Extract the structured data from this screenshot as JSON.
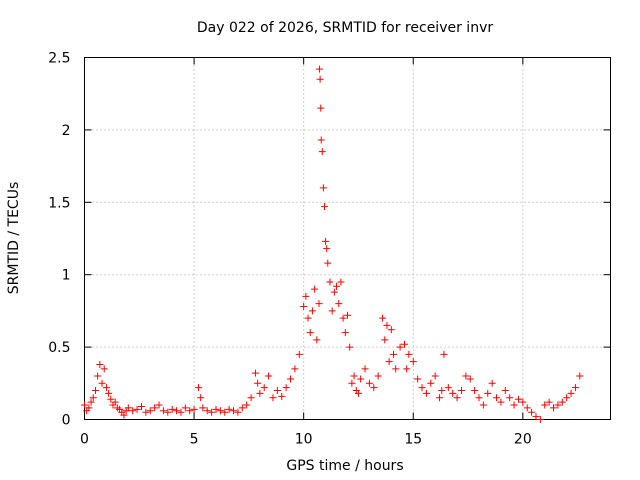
{
  "chart_data": {
    "type": "scatter",
    "title": "Day 022 of 2026, SRMTID for receiver invr",
    "xlabel": "GPS time / hours",
    "ylabel": "SRMTID / TECUs",
    "xlim": [
      0,
      24
    ],
    "ylim": [
      0,
      2.5
    ],
    "xticks": [
      0,
      5,
      10,
      15,
      20
    ],
    "xtick_labels": [
      "0",
      "5",
      "10",
      "15",
      "20"
    ],
    "yticks": [
      0,
      0.5,
      1,
      1.5,
      2,
      2.5
    ],
    "ytick_labels": [
      "0",
      "0.5",
      "1",
      "1.5",
      "2",
      "2.5"
    ],
    "grid": true,
    "marker": "+",
    "color": "#ff0000",
    "series": [
      {
        "name": "SRMTID",
        "x": [
          0.0,
          0.1,
          0.2,
          0.3,
          0.4,
          0.5,
          0.6,
          0.7,
          0.8,
          0.9,
          1.0,
          1.1,
          1.2,
          1.3,
          1.4,
          1.5,
          1.6,
          1.7,
          1.8,
          1.9,
          2.0,
          2.2,
          2.4,
          2.6,
          2.8,
          3.0,
          3.2,
          3.4,
          3.6,
          3.8,
          4.0,
          4.2,
          4.4,
          4.6,
          4.8,
          5.0,
          5.2,
          5.3,
          5.4,
          5.6,
          5.8,
          6.0,
          6.2,
          6.4,
          6.6,
          6.8,
          7.0,
          7.2,
          7.4,
          7.6,
          7.8,
          7.9,
          8.0,
          8.2,
          8.4,
          8.6,
          8.8,
          9.0,
          9.2,
          9.4,
          9.6,
          9.8,
          10.0,
          10.1,
          10.2,
          10.3,
          10.4,
          10.5,
          10.6,
          10.7,
          10.72,
          10.75,
          10.78,
          10.8,
          10.85,
          10.9,
          10.95,
          11.0,
          11.05,
          11.1,
          11.2,
          11.3,
          11.4,
          11.5,
          11.6,
          11.7,
          11.8,
          11.9,
          12.0,
          12.1,
          12.2,
          12.3,
          12.4,
          12.5,
          12.6,
          12.8,
          13.0,
          13.2,
          13.4,
          13.6,
          13.7,
          13.8,
          13.9,
          14.0,
          14.1,
          14.2,
          14.4,
          14.6,
          14.7,
          14.8,
          15.0,
          15.2,
          15.4,
          15.6,
          15.8,
          16.0,
          16.2,
          16.3,
          16.4,
          16.6,
          16.8,
          17.0,
          17.2,
          17.4,
          17.6,
          17.8,
          18.0,
          18.2,
          18.4,
          18.6,
          18.8,
          19.0,
          19.2,
          19.4,
          19.6,
          19.8,
          20.0,
          20.2,
          20.4,
          20.6,
          20.8,
          21.0,
          21.2,
          21.4,
          21.6,
          21.8,
          22.0,
          22.2,
          22.4,
          22.6
        ],
        "y": [
          0.1,
          0.06,
          0.08,
          0.12,
          0.15,
          0.2,
          0.3,
          0.38,
          0.25,
          0.35,
          0.22,
          0.18,
          0.14,
          0.1,
          0.12,
          0.08,
          0.07,
          0.05,
          0.03,
          0.06,
          0.08,
          0.06,
          0.07,
          0.09,
          0.05,
          0.06,
          0.08,
          0.1,
          0.06,
          0.05,
          0.07,
          0.06,
          0.05,
          0.08,
          0.06,
          0.07,
          0.22,
          0.15,
          0.08,
          0.06,
          0.05,
          0.07,
          0.06,
          0.05,
          0.07,
          0.06,
          0.05,
          0.08,
          0.1,
          0.15,
          0.32,
          0.25,
          0.18,
          0.22,
          0.3,
          0.15,
          0.2,
          0.16,
          0.22,
          0.28,
          0.35,
          0.45,
          0.78,
          0.85,
          0.7,
          0.6,
          0.75,
          0.9,
          0.55,
          0.8,
          2.42,
          2.35,
          2.15,
          1.93,
          1.85,
          1.6,
          1.47,
          1.23,
          1.18,
          1.08,
          0.95,
          0.75,
          0.88,
          0.92,
          0.8,
          0.95,
          0.7,
          0.6,
          0.72,
          0.5,
          0.25,
          0.3,
          0.2,
          0.18,
          0.28,
          0.35,
          0.25,
          0.22,
          0.3,
          0.7,
          0.55,
          0.65,
          0.4,
          0.62,
          0.45,
          0.35,
          0.5,
          0.52,
          0.35,
          0.45,
          0.4,
          0.28,
          0.22,
          0.18,
          0.25,
          0.3,
          0.15,
          0.2,
          0.45,
          0.22,
          0.18,
          0.15,
          0.2,
          0.3,
          0.28,
          0.2,
          0.15,
          0.1,
          0.18,
          0.25,
          0.15,
          0.12,
          0.2,
          0.15,
          0.1,
          0.14,
          0.12,
          0.08,
          0.05,
          0.02,
          0.0,
          0.1,
          0.12,
          0.08,
          0.1,
          0.12,
          0.15,
          0.18,
          0.22,
          0.3
        ]
      }
    ]
  }
}
